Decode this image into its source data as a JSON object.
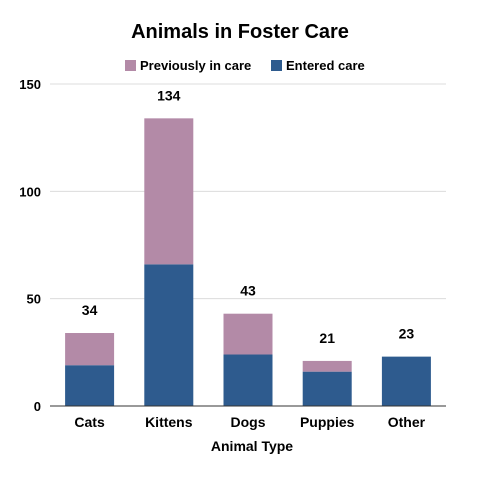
{
  "chart_data": {
    "type": "bar",
    "stacked": true,
    "title": "Animals in Foster Care",
    "xlabel": "Animal Type",
    "ylabel": "",
    "ylim": [
      0,
      150
    ],
    "yticks": [
      0,
      50,
      100,
      150
    ],
    "grid": true,
    "legend_position": "top",
    "categories": [
      "Cats",
      "Kittens",
      "Dogs",
      "Puppies",
      "Other"
    ],
    "series": [
      {
        "name": "Entered care",
        "color": "#2e5b8e",
        "values": [
          19,
          66,
          24,
          16,
          23
        ]
      },
      {
        "name": "Previously in care",
        "color": "#b38aa7",
        "values": [
          15,
          68,
          19,
          5,
          0
        ]
      }
    ],
    "totals": [
      34,
      134,
      43,
      21,
      23
    ],
    "legend_order": [
      "Previously in care",
      "Entered care"
    ]
  }
}
